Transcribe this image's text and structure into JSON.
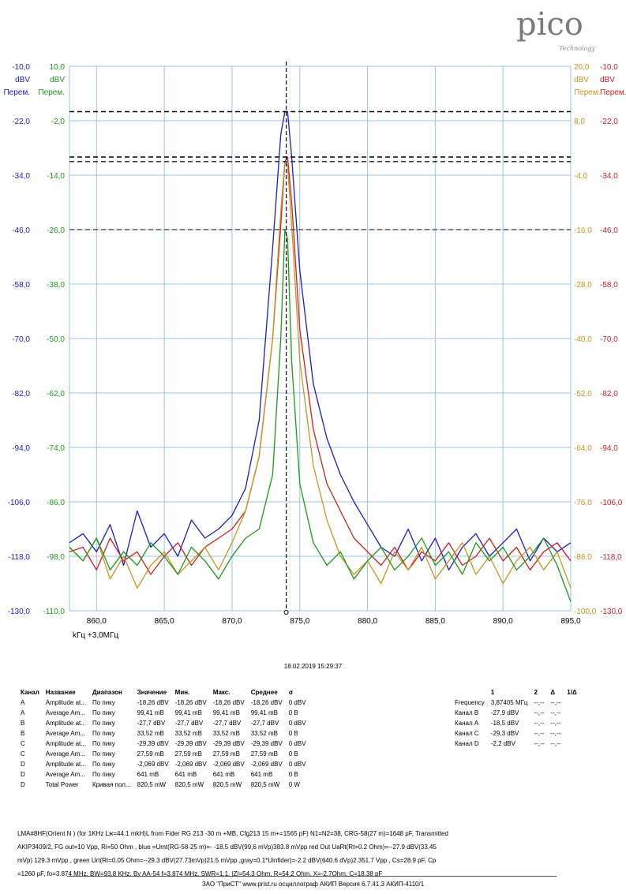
{
  "logo": {
    "text": "pico",
    "subtext": "Technology"
  },
  "chart_data": {
    "type": "line",
    "x_range": [
      858.0,
      895.0
    ],
    "x_ticks": [
      "860,0",
      "865,0",
      "870,0",
      "875,0",
      "880,0",
      "885,0",
      "890,0",
      "895,0"
    ],
    "x_unit_line": "kГц    +3,0МГц",
    "cursor_x": 874.0,
    "left_axes": [
      {
        "color": "#1a1acc",
        "unit": "dBV",
        "label": "Перем.",
        "range": [
          -130,
          -10
        ],
        "ticks": [
          "-10,0",
          "-22,0",
          "-34,0",
          "-46,0",
          "-58,0",
          "-70,0",
          "-82,0",
          "-94,0",
          "-106,0",
          "-118,0",
          "-130,0"
        ]
      },
      {
        "color": "#1a9a1a",
        "unit": "dBV",
        "label": "Перем.",
        "range": [
          -110,
          10
        ],
        "ticks": [
          "10,0",
          "-2,0",
          "-14,0",
          "-26,0",
          "-38,0",
          "-50,0",
          "-62,0",
          "-74,0",
          "-86,0",
          "-98,0",
          "-110,0"
        ]
      }
    ],
    "right_axes": [
      {
        "color": "#c8961e",
        "unit": "dBV",
        "label": "Перем.",
        "range": [
          -100,
          20
        ],
        "ticks": [
          "20,0",
          "8,0",
          "-4,0",
          "-16,0",
          "-28,0",
          "-40,0",
          "-52,0",
          "-64,0",
          "-76,0",
          "-88,0",
          "-100,0"
        ]
      },
      {
        "color": "#d21e1e",
        "unit": "dBV",
        "label": "Перем.",
        "range": [
          -130,
          -10
        ],
        "ticks": [
          "-10,0",
          "-22,0",
          "-34,0",
          "-46,0",
          "-58,0",
          "-70,0",
          "-82,0",
          "-94,0",
          "-106,0",
          "-118,0",
          "-130,0"
        ]
      }
    ],
    "series": [
      {
        "color": "#1a1acc",
        "axis": "blue",
        "points": [
          [
            858,
            -115
          ],
          [
            859,
            -113
          ],
          [
            860,
            -117
          ],
          [
            861,
            -111
          ],
          [
            862,
            -120
          ],
          [
            863,
            -108
          ],
          [
            864,
            -116
          ],
          [
            865,
            -113
          ],
          [
            866,
            -118
          ],
          [
            867,
            -110
          ],
          [
            868,
            -114
          ],
          [
            869,
            -112
          ],
          [
            870,
            -109
          ],
          [
            871,
            -103
          ],
          [
            872,
            -88
          ],
          [
            873,
            -50
          ],
          [
            873.6,
            -25
          ],
          [
            873.9,
            -20
          ],
          [
            874.1,
            -20
          ],
          [
            874.4,
            -30
          ],
          [
            875,
            -55
          ],
          [
            876,
            -80
          ],
          [
            877,
            -92
          ],
          [
            878,
            -100
          ],
          [
            879,
            -106
          ],
          [
            880,
            -111
          ],
          [
            881,
            -116
          ],
          [
            882,
            -118
          ],
          [
            883,
            -112
          ],
          [
            884,
            -119
          ],
          [
            885,
            -114
          ],
          [
            886,
            -121
          ],
          [
            887,
            -116
          ],
          [
            888,
            -113
          ],
          [
            889,
            -118
          ],
          [
            890,
            -115
          ],
          [
            891,
            -112
          ],
          [
            892,
            -119
          ],
          [
            893,
            -114
          ],
          [
            894,
            -117
          ],
          [
            895,
            -115
          ]
        ]
      },
      {
        "color": "#d21e1e",
        "axis": "red",
        "points": [
          [
            858,
            -117
          ],
          [
            859,
            -116
          ],
          [
            860,
            -121
          ],
          [
            861,
            -114
          ],
          [
            862,
            -119
          ],
          [
            863,
            -117
          ],
          [
            864,
            -122
          ],
          [
            865,
            -118
          ],
          [
            866,
            -115
          ],
          [
            867,
            -120
          ],
          [
            868,
            -116
          ],
          [
            869,
            -114
          ],
          [
            870,
            -112
          ],
          [
            871,
            -108
          ],
          [
            872,
            -96
          ],
          [
            873,
            -70
          ],
          [
            873.6,
            -45
          ],
          [
            873.9,
            -31
          ],
          [
            874.1,
            -30
          ],
          [
            874.4,
            -40
          ],
          [
            875,
            -68
          ],
          [
            876,
            -90
          ],
          [
            877,
            -102
          ],
          [
            878,
            -108
          ],
          [
            879,
            -114
          ],
          [
            880,
            -117
          ],
          [
            881,
            -120
          ],
          [
            882,
            -116
          ],
          [
            883,
            -121
          ],
          [
            884,
            -117
          ],
          [
            885,
            -119
          ],
          [
            886,
            -115
          ],
          [
            887,
            -120
          ],
          [
            888,
            -118
          ],
          [
            889,
            -114
          ],
          [
            890,
            -119
          ],
          [
            891,
            -116
          ],
          [
            892,
            -121
          ],
          [
            893,
            -117
          ],
          [
            894,
            -115
          ],
          [
            895,
            -119
          ]
        ]
      },
      {
        "color": "#c8961e",
        "axis": "orange",
        "points": [
          [
            858,
            -86
          ],
          [
            859,
            -89
          ],
          [
            860,
            -84
          ],
          [
            861,
            -93
          ],
          [
            862,
            -88
          ],
          [
            863,
            -95
          ],
          [
            864,
            -90
          ],
          [
            865,
            -87
          ],
          [
            866,
            -92
          ],
          [
            867,
            -89
          ],
          [
            868,
            -86
          ],
          [
            869,
            -91
          ],
          [
            870,
            -85
          ],
          [
            871,
            -78
          ],
          [
            872,
            -66
          ],
          [
            873,
            -40
          ],
          [
            873.6,
            -12
          ],
          [
            873.9,
            -1
          ],
          [
            874.1,
            -2
          ],
          [
            874.4,
            -15
          ],
          [
            875,
            -45
          ],
          [
            876,
            -68
          ],
          [
            877,
            -80
          ],
          [
            878,
            -88
          ],
          [
            879,
            -92
          ],
          [
            880,
            -89
          ],
          [
            881,
            -94
          ],
          [
            882,
            -87
          ],
          [
            883,
            -91
          ],
          [
            884,
            -86
          ],
          [
            885,
            -93
          ],
          [
            886,
            -89
          ],
          [
            887,
            -85
          ],
          [
            888,
            -92
          ],
          [
            889,
            -88
          ],
          [
            890,
            -94
          ],
          [
            891,
            -89
          ],
          [
            892,
            -86
          ],
          [
            893,
            -91
          ],
          [
            894,
            -87
          ],
          [
            895,
            -95
          ]
        ]
      },
      {
        "color": "#1a9a1a",
        "axis": "green",
        "points": [
          [
            858,
            -96
          ],
          [
            859,
            -99
          ],
          [
            860,
            -94
          ],
          [
            861,
            -101
          ],
          [
            862,
            -97
          ],
          [
            863,
            -100
          ],
          [
            864,
            -95
          ],
          [
            865,
            -98
          ],
          [
            866,
            -102
          ],
          [
            867,
            -96
          ],
          [
            868,
            -99
          ],
          [
            869,
            -103
          ],
          [
            870,
            -98
          ],
          [
            871,
            -94
          ],
          [
            872,
            -92
          ],
          [
            873,
            -80
          ],
          [
            873.6,
            -50
          ],
          [
            873.9,
            -26
          ],
          [
            874.1,
            -28
          ],
          [
            874.4,
            -55
          ],
          [
            875,
            -82
          ],
          [
            876,
            -95
          ],
          [
            877,
            -100
          ],
          [
            878,
            -97
          ],
          [
            879,
            -103
          ],
          [
            880,
            -99
          ],
          [
            881,
            -96
          ],
          [
            882,
            -101
          ],
          [
            883,
            -98
          ],
          [
            884,
            -94
          ],
          [
            885,
            -100
          ],
          [
            886,
            -97
          ],
          [
            887,
            -102
          ],
          [
            888,
            -95
          ],
          [
            889,
            -99
          ],
          [
            890,
            -96
          ],
          [
            891,
            -101
          ],
          [
            892,
            -98
          ],
          [
            893,
            -94
          ],
          [
            894,
            -100
          ],
          [
            895,
            -108
          ]
        ]
      }
    ]
  },
  "timestamp": "18.02.2019 15:29:37",
  "measurements": {
    "headers": [
      "Канал",
      "Название",
      "Диапазон",
      "Значение",
      "Мин.",
      "Макс.",
      "Среднее",
      "σ"
    ],
    "rows": [
      [
        "A",
        "Amplitude at...",
        "По пику",
        "-18,26 dBV",
        "-18,26 dBV",
        "-18,26 dBV",
        "-18,26 dBV",
        "0 dBV"
      ],
      [
        "A",
        "Average Am...",
        "По пику",
        "99,41 mB",
        "99,41 mB",
        "99,41 mB",
        "99,41 mB",
        "0 B"
      ],
      [
        "B",
        "Amplitude at...",
        "По пику",
        "-27,7 dBV",
        "-27,7 dBV",
        "-27,7 dBV",
        "-27,7 dBV",
        "0 dBV"
      ],
      [
        "B",
        "Average Am...",
        "По пику",
        "33,52 mB",
        "33,52 mB",
        "33,52 mB",
        "33,52 mB",
        "0 B"
      ],
      [
        "C",
        "Amplitude at...",
        "По пику",
        "-29,39 dBV",
        "-29,39 dBV",
        "-29,39 dBV",
        "-29,39 dBV",
        "0 dBV"
      ],
      [
        "C",
        "Average Am...",
        "По пику",
        "27,59 mB",
        "27,59 mB",
        "27,59 mB",
        "27,59 mB",
        "0 B"
      ],
      [
        "D",
        "Amplitude at...",
        "По пику",
        "-2,069 dBV",
        "-2,069 dBV",
        "-2,069 dBV",
        "-2,069 dBV",
        "0 dBV"
      ],
      [
        "D",
        "Average Am...",
        "По пику",
        "641 mB",
        "641 mB",
        "641 mB",
        "641 mB",
        "0 B"
      ],
      [
        "D",
        "Total Power",
        "Кривая пол...",
        "820,5 mW",
        "820,5 mW",
        "820,5 mW",
        "820,5 mW",
        "0 W"
      ]
    ]
  },
  "cursors": {
    "headers": [
      "",
      "1",
      "2",
      "Δ",
      "1/Δ"
    ],
    "rows": [
      [
        "Frequency",
        "3,87405 МГц",
        "--,--",
        "--,--",
        ""
      ],
      [
        "Канал B",
        "-27,9 dBV",
        "--,--",
        "--,--",
        ""
      ],
      [
        "Канал A",
        "-18,5 dBV",
        "--,--",
        "--,--",
        ""
      ],
      [
        "Канал C",
        "-29,3 dBV",
        "--,--",
        "--,--",
        ""
      ],
      [
        "Канал D",
        "-2,2 dBV",
        "--,--",
        "--,--",
        ""
      ]
    ]
  },
  "notes": [
    "LMA#8HF(Orient N ) (for 1KHz  Lж=44.1 mkH)L from Fider RG 213 -30 m +MB, Cfg213 15 m+=1565 pF) N1=N2=38, CRG-58(27 m)=1648 pF, Transmitted",
    "AKIP3409/2,  FG out=10 Vpp, Ri=50 Ohm , blue =Umt(RG-58-25 m)=- -18.5 dBV(99,6  mVp)383.8 mVpp   red Out UaRt(Rt=0.2 Ohm)=--27.9 dBV(33.45",
    "mVp) 129.3 mVpp ,  green Urt(Rt=0.05 Ohm=--29.3 dBV(27.73mVp)21.5 mVpp ,gray=0.1*Uinfider)=-2.2 dBV(640.6 dVp)2.351.7 Vpp , Cs=28.9 pF, Cp",
    "=1260 pF, fo=3.874 MHz, BW=93.8 KHz, By AA-54 f=3.874 MHz, SWR=1.1, |Z|=54.3 Ohm, R=54.2 Ohm, X=-2,7Ohm,  C=18.38 pF"
  ],
  "footer": "ЗАО \"ПриСТ\"     www.prist.ru     осциллограф АКИП Версия 6.7.41.3    АКИП-4110/1"
}
